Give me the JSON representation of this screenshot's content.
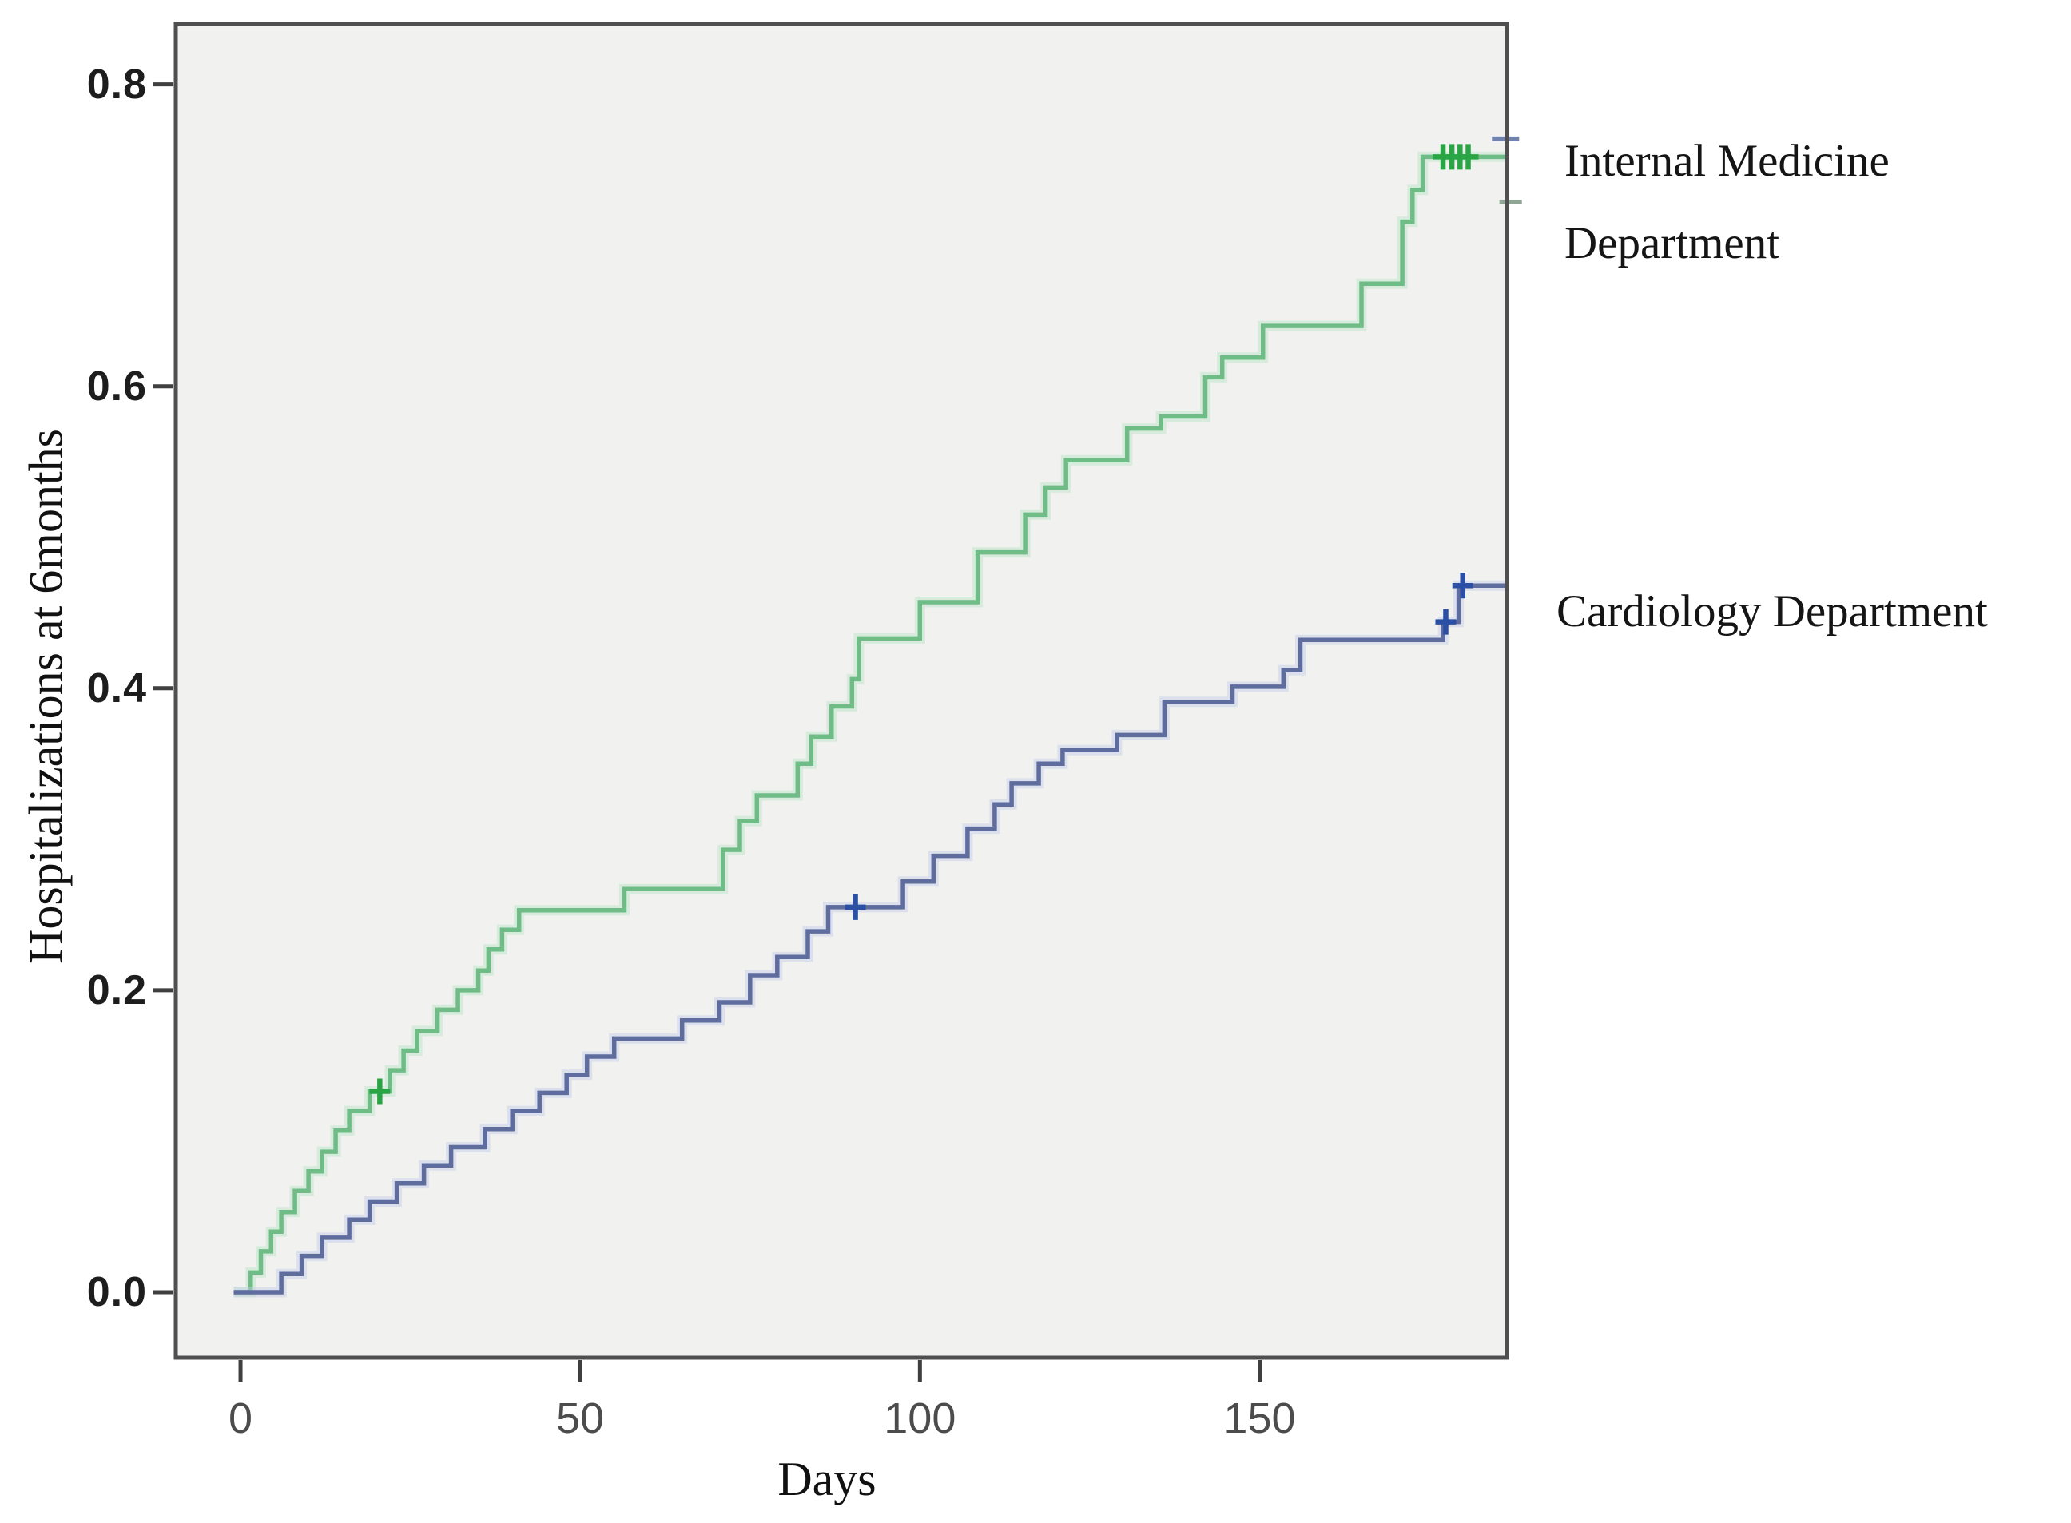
{
  "figure": {
    "y_axis_title": "Hospitalizations at 6months",
    "x_axis_title": "Days",
    "legend": {
      "internal_line1": "Internal Medicine",
      "internal_line2": "Department",
      "cardiology": "Cardiology Department"
    }
  },
  "colors": {
    "background": "#ffffff",
    "plot_background": "#f1f1ef",
    "plot_border": "#4f4f4f",
    "tick": "#3f3f3f",
    "y_tick_label": "#1d1d1d",
    "x_tick_label": "#4c4c4c",
    "axis_title": "#111111",
    "legend_text": "#151515"
  },
  "chart_data": {
    "type": "line",
    "subtype": "kaplan-meier-step-cumulative-incidence",
    "title": "",
    "xlabel": "Days",
    "ylabel": "Hospitalizations at 6months",
    "xlim": [
      -9.53,
      186.4
    ],
    "ylim": [
      -0.0434,
      0.84
    ],
    "x_ticks": [
      0,
      50,
      100,
      150
    ],
    "y_ticks": [
      "0.0",
      "0.2",
      "0.4",
      "0.6",
      "0.8"
    ],
    "y_tick_values": [
      0.0,
      0.2,
      0.4,
      0.6,
      0.8
    ],
    "grid": false,
    "legend_position": "right-outside",
    "series": [
      {
        "name": "Internal Medicine Department",
        "color": "#6fbc87",
        "halo_color": "#b9e4c6",
        "censor_color": "#2aa546",
        "end_day": 186.6,
        "steps": [
          [
            -1,
            0
          ],
          [
            1.5,
            0.013
          ],
          [
            3,
            0.027
          ],
          [
            4.5,
            0.04
          ],
          [
            6,
            0.053
          ],
          [
            8,
            0.067
          ],
          [
            10,
            0.08
          ],
          [
            12,
            0.093
          ],
          [
            14,
            0.107
          ],
          [
            16,
            0.12
          ],
          [
            19,
            0.133
          ],
          [
            22,
            0.147
          ],
          [
            24,
            0.16
          ],
          [
            26,
            0.173
          ],
          [
            29,
            0.187
          ],
          [
            32,
            0.2
          ],
          [
            35,
            0.213
          ],
          [
            36.5,
            0.227
          ],
          [
            38.5,
            0.24
          ],
          [
            41,
            0.253
          ],
          [
            56.5,
            0.267
          ],
          [
            71,
            0.293
          ],
          [
            73.5,
            0.312
          ],
          [
            76,
            0.329
          ],
          [
            82,
            0.35
          ],
          [
            84,
            0.368
          ],
          [
            87,
            0.388
          ],
          [
            90,
            0.406
          ],
          [
            91,
            0.433
          ],
          [
            100,
            0.457
          ],
          [
            108.5,
            0.49
          ],
          [
            115.5,
            0.515
          ],
          [
            118.5,
            0.533
          ],
          [
            121.5,
            0.551
          ],
          [
            130.5,
            0.572
          ],
          [
            135.5,
            0.58
          ],
          [
            142,
            0.606
          ],
          [
            144.5,
            0.619
          ],
          [
            150.5,
            0.64
          ],
          [
            165,
            0.668
          ],
          [
            171,
            0.709
          ],
          [
            172.5,
            0.73
          ],
          [
            174,
            0.752
          ]
        ],
        "censors": [
          [
            20.5,
            0.133
          ],
          [
            177,
            0.752
          ],
          [
            178.3,
            0.752
          ],
          [
            179.5,
            0.752
          ],
          [
            180.7,
            0.752
          ]
        ]
      },
      {
        "name": "Cardiology Department",
        "color": "#5e6c9e",
        "halo_color": "#c2cbe8",
        "censor_color": "#2b4fa5",
        "end_day": 189,
        "steps": [
          [
            -1,
            0
          ],
          [
            6,
            0.012
          ],
          [
            9,
            0.024
          ],
          [
            12,
            0.036
          ],
          [
            16,
            0.048
          ],
          [
            19,
            0.06
          ],
          [
            23,
            0.072
          ],
          [
            27,
            0.084
          ],
          [
            31,
            0.096
          ],
          [
            36,
            0.108
          ],
          [
            40,
            0.12
          ],
          [
            44,
            0.132
          ],
          [
            48,
            0.144
          ],
          [
            51,
            0.156
          ],
          [
            55,
            0.168
          ],
          [
            65,
            0.18
          ],
          [
            70.5,
            0.192
          ],
          [
            75,
            0.21
          ],
          [
            79,
            0.222
          ],
          [
            83.5,
            0.239
          ],
          [
            86.5,
            0.255
          ],
          [
            97.5,
            0.272
          ],
          [
            102,
            0.289
          ],
          [
            107,
            0.307
          ],
          [
            111,
            0.323
          ],
          [
            113.5,
            0.337
          ],
          [
            117.5,
            0.35
          ],
          [
            121,
            0.359
          ],
          [
            129,
            0.369
          ],
          [
            136,
            0.391
          ],
          [
            146,
            0.401
          ],
          [
            153.5,
            0.412
          ],
          [
            156,
            0.432
          ],
          [
            177,
            0.444
          ],
          [
            179.3,
            0.468
          ]
        ],
        "censors": [
          [
            90.5,
            0.255
          ],
          [
            177.4,
            0.444
          ],
          [
            179.9,
            0.468
          ]
        ]
      }
    ],
    "edge_stubs": [
      {
        "color": "#7282ae",
        "value": 0.764,
        "day_from": 184.2,
        "day_to": 188.2
      },
      {
        "color": "#8fa694",
        "value": 0.722,
        "day_from": 185.3,
        "day_to": 188.6
      }
    ]
  }
}
